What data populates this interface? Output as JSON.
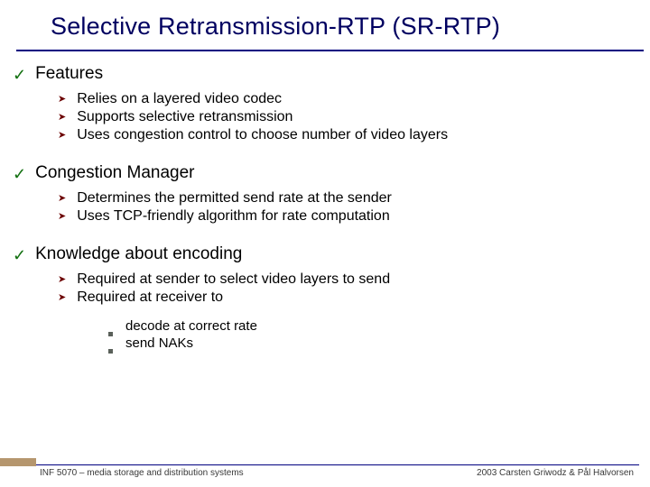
{
  "title": "Selective Retransmission-RTP (SR-RTP)",
  "title_color": "#000060",
  "underline_color": "#000080",
  "checkmark_color": "#127010",
  "arrow_color": "#6b0000",
  "square_color": "#5a605a",
  "background_color": "#ffffff",
  "footer_accent_color": "#b5966e",
  "sections": [
    {
      "heading": "Features",
      "bullets": [
        "Relies on a layered video codec",
        "Supports selective retransmission",
        "Uses congestion control to choose number of video layers"
      ]
    },
    {
      "heading": "Congestion Manager",
      "bullets": [
        "Determines the permitted send rate at the sender",
        "Uses TCP-friendly algorithm for rate computation"
      ]
    },
    {
      "heading": "Knowledge about encoding",
      "bullets": [
        "Required at sender to select video layers to send",
        "Required at receiver to"
      ],
      "sub_bullets_after_index": 1,
      "sub_bullets": [
        "decode at correct rate",
        "send NAKs"
      ]
    }
  ],
  "footer": {
    "left": "INF 5070 – media storage and distribution systems",
    "right": "2003  Carsten Griwodz & Pål Halvorsen"
  }
}
